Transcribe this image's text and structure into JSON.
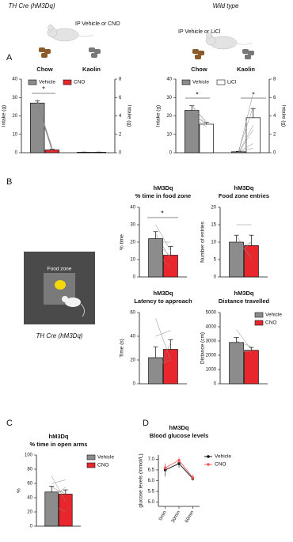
{
  "header": {
    "left_title": "TH Cre (hM3Dq)",
    "right_title": "Wild type",
    "left_treatment": "IP Vehicle or CNO",
    "right_treatment": "IP Vehicle or LiCl"
  },
  "panels": [
    "A",
    "B",
    "C",
    "D"
  ],
  "arena": {
    "zone_label": "Food zone",
    "caption": "TH Cre (hM3Dq)"
  },
  "chart_data": [
    {
      "type": "bar",
      "categories": [
        "Chow",
        "Kaolin"
      ],
      "category_axis": [
        "y",
        "y2"
      ],
      "ylabel": "Intake (g)",
      "ylim": [
        0,
        40
      ],
      "yticks": [
        0,
        10,
        20,
        30,
        40
      ],
      "y2label": "Intake (g)",
      "y2lim": [
        0,
        8
      ],
      "y2ticks": [
        0,
        2,
        4,
        6,
        8
      ],
      "series": [
        {
          "name": "Vehicle",
          "color": "#8c8c8c",
          "values": [
            27,
            0.05
          ],
          "errors": [
            1.2,
            0.02
          ]
        },
        {
          "name": "CNO",
          "color": "#e8262b",
          "values": [
            1.5,
            0.05
          ],
          "errors": [
            0.5,
            0.02
          ]
        }
      ],
      "individual": [
        [
          [
            27,
            1
          ],
          [
            28,
            2
          ],
          [
            26,
            1
          ],
          [
            29,
            0.5
          ],
          [
            25,
            2
          ],
          [
            27,
            3
          ]
        ]
      ],
      "annotations": [
        "*"
      ]
    },
    {
      "type": "bar",
      "categories": [
        "Chow",
        "Kaolin"
      ],
      "category_axis": [
        "y",
        "y2"
      ],
      "ylabel": "Intake (g)",
      "ylim": [
        0,
        40
      ],
      "yticks": [
        0,
        10,
        20,
        30,
        40
      ],
      "y2label": "Intake (g)",
      "y2lim": [
        0,
        8
      ],
      "y2ticks": [
        0,
        2,
        4,
        6,
        8
      ],
      "series": [
        {
          "name": "Vehicle",
          "color": "#8c8c8c",
          "values": [
            23,
            0.1
          ],
          "errors": [
            2.5,
            0.05
          ]
        },
        {
          "name": "LiCl",
          "color": "#ffffff",
          "values": [
            15.5,
            3.8
          ],
          "errors": [
            1,
            1
          ]
        }
      ],
      "individual": [
        [
          [
            22,
            15
          ],
          [
            25,
            17
          ],
          [
            20,
            14
          ],
          [
            26,
            16
          ],
          [
            21,
            16
          ]
        ],
        [
          [
            0,
            6.5
          ],
          [
            0.2,
            5
          ],
          [
            0,
            3
          ],
          [
            0.1,
            1
          ],
          [
            0,
            2.5
          ],
          [
            0.1,
            0.5
          ]
        ]
      ],
      "annotations": [
        "*",
        "*"
      ]
    },
    {
      "type": "bar",
      "title": [
        "hM3Dq",
        "% time in food zone"
      ],
      "ylabel": "% time",
      "ylim": [
        0,
        40
      ],
      "yticks": [
        0,
        10,
        20,
        30,
        40
      ],
      "series": [
        {
          "name": "Vehicle",
          "color": "#8c8c8c",
          "values": [
            22
          ],
          "errors": [
            4
          ]
        },
        {
          "name": "CNO",
          "color": "#e8262b",
          "values": [
            12.5
          ],
          "errors": [
            5
          ]
        }
      ],
      "individual": [
        [
          [
            30,
            15
          ],
          [
            25,
            10
          ],
          [
            20,
            20
          ],
          [
            15,
            5
          ],
          [
            20,
            12
          ]
        ]
      ],
      "annotations": [
        "*"
      ]
    },
    {
      "type": "bar",
      "title": [
        "hM3Dq",
        "Food zone entries"
      ],
      "ylabel": "Number of entries",
      "ylim": [
        0,
        20
      ],
      "yticks": [
        0,
        5,
        10,
        15,
        20
      ],
      "series": [
        {
          "name": "Vehicle",
          "color": "#8c8c8c",
          "values": [
            10
          ],
          "errors": [
            2
          ]
        },
        {
          "name": "CNO",
          "color": "#e8262b",
          "values": [
            9
          ],
          "errors": [
            3
          ]
        }
      ],
      "individual": [
        [
          [
            15,
            15
          ],
          [
            12,
            5
          ],
          [
            8,
            10
          ],
          [
            6,
            10
          ],
          [
            10,
            6
          ]
        ]
      ]
    },
    {
      "type": "bar",
      "title": [
        "hM3Dq",
        "Latency to approach"
      ],
      "ylabel": "Time (s)",
      "ylim": [
        0,
        60
      ],
      "yticks": [
        0,
        20,
        40,
        60
      ],
      "series": [
        {
          "name": "Vehicle",
          "color": "#8c8c8c",
          "values": [
            22
          ],
          "errors": [
            9
          ]
        },
        {
          "name": "CNO",
          "color": "#e8262b",
          "values": [
            29
          ],
          "errors": [
            8
          ]
        }
      ],
      "individual": [
        [
          [
            55,
            20
          ],
          [
            40,
            45
          ],
          [
            10,
            25
          ],
          [
            5,
            35
          ],
          [
            15,
            20
          ]
        ]
      ]
    },
    {
      "type": "bar",
      "title": [
        "hM3Dq",
        "Distance travelled"
      ],
      "ylabel": "Distance (cm)",
      "ylim": [
        0,
        5000
      ],
      "yticks": [
        0,
        1000,
        2000,
        3000,
        4000,
        5000
      ],
      "series": [
        {
          "name": "Vehicle",
          "color": "#8c8c8c",
          "values": [
            2900
          ],
          "errors": [
            350
          ]
        },
        {
          "name": "CNO",
          "color": "#e8262b",
          "values": [
            2350
          ],
          "errors": [
            200
          ]
        }
      ],
      "individual": [
        [
          [
            3800,
            2400
          ],
          [
            3000,
            2600
          ],
          [
            2500,
            2200
          ],
          [
            2200,
            2300
          ]
        ]
      ]
    },
    {
      "type": "bar",
      "title": [
        "hM3Dq",
        "% time in open arms"
      ],
      "ylabel": "%",
      "ylim": [
        0,
        100
      ],
      "yticks": [
        0,
        20,
        40,
        60,
        80,
        100
      ],
      "series": [
        {
          "name": "Vehicle",
          "color": "#8c8c8c",
          "values": [
            48
          ],
          "errors": [
            8
          ]
        },
        {
          "name": "CNO",
          "color": "#e8262b",
          "values": [
            45
          ],
          "errors": [
            6
          ]
        }
      ],
      "individual": [
        [
          [
            70,
            35
          ],
          [
            60,
            65
          ],
          [
            40,
            55
          ],
          [
            30,
            20
          ],
          [
            45,
            50
          ],
          [
            55,
            45
          ]
        ]
      ]
    },
    {
      "type": "line",
      "title": [
        "hM3Dq",
        "Blood glucose levels"
      ],
      "ylabel": "glucose levels (mmol/L)",
      "categories": [
        "0min",
        "30min",
        "60min"
      ],
      "ylim": [
        4.8,
        7.2
      ],
      "yticks": [
        {
          "value": 5,
          "label": "5.0"
        },
        5.5,
        {
          "value": 6,
          "label": "6.0"
        },
        6.5,
        {
          "value": 7,
          "label": "7.0"
        }
      ],
      "series": [
        {
          "name": "Vehicle",
          "color": "#111111",
          "values": [
            6.5,
            6.8,
            6.1
          ],
          "errors": [
            0.3,
            0.2,
            0.1
          ]
        },
        {
          "name": "CNO",
          "color": "#f05a5a",
          "values": [
            6.6,
            6.95,
            6.15
          ],
          "errors": [
            0.2,
            0.15,
            0.15
          ]
        }
      ]
    }
  ]
}
